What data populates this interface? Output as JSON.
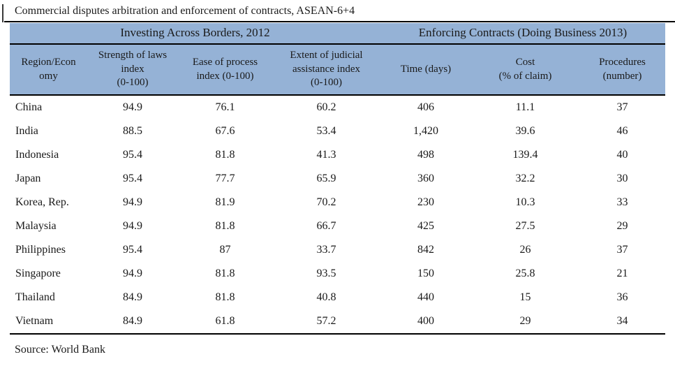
{
  "title": "Commercial disputes arbitration and enforcement of contracts, ASEAN-6+4",
  "source_note": "Source: World Bank",
  "colors": {
    "header_bg": "#95B2D6",
    "rule": "#000000",
    "text": "#1a1a1a"
  },
  "table": {
    "group_headers": [
      {
        "label": "Investing Across Borders, 2012"
      },
      {
        "label": "Enforcing Contracts (Doing Business 2013)"
      }
    ],
    "columns": [
      {
        "label": "Region/Econ\nomy"
      },
      {
        "label": "Strength of laws\nindex\n(0-100)"
      },
      {
        "label": "Ease of process\nindex (0-100)"
      },
      {
        "label": "Extent of judicial\nassistance index\n(0-100)"
      },
      {
        "label": "Time (days)"
      },
      {
        "label": "Cost\n(% of claim)"
      },
      {
        "label": "Procedures\n(number)"
      }
    ],
    "rows": [
      {
        "economy": "China",
        "values": [
          "94.9",
          "76.1",
          "60.2",
          "406",
          "11.1",
          "37"
        ]
      },
      {
        "economy": "India",
        "values": [
          "88.5",
          "67.6",
          "53.4",
          "1,420",
          "39.6",
          "46"
        ]
      },
      {
        "economy": "Indonesia",
        "values": [
          "95.4",
          "81.8",
          "41.3",
          "498",
          "139.4",
          "40"
        ]
      },
      {
        "economy": "Japan",
        "values": [
          "95.4",
          "77.7",
          "65.9",
          "360",
          "32.2",
          "30"
        ]
      },
      {
        "economy": "Korea, Rep.",
        "values": [
          "94.9",
          "81.9",
          "70.2",
          "230",
          "10.3",
          "33"
        ]
      },
      {
        "economy": "Malaysia",
        "values": [
          "94.9",
          "81.8",
          "66.7",
          "425",
          "27.5",
          "29"
        ]
      },
      {
        "economy": "Philippines",
        "values": [
          "95.4",
          "87",
          "33.7",
          "842",
          "26",
          "37"
        ]
      },
      {
        "economy": "Singapore",
        "values": [
          "94.9",
          "81.8",
          "93.5",
          "150",
          "25.8",
          "21"
        ]
      },
      {
        "economy": "Thailand",
        "values": [
          "84.9",
          "81.8",
          "40.8",
          "440",
          "15",
          "36"
        ]
      },
      {
        "economy": "Vietnam",
        "values": [
          "84.9",
          "61.8",
          "57.2",
          "400",
          "29",
          "34"
        ]
      }
    ]
  }
}
